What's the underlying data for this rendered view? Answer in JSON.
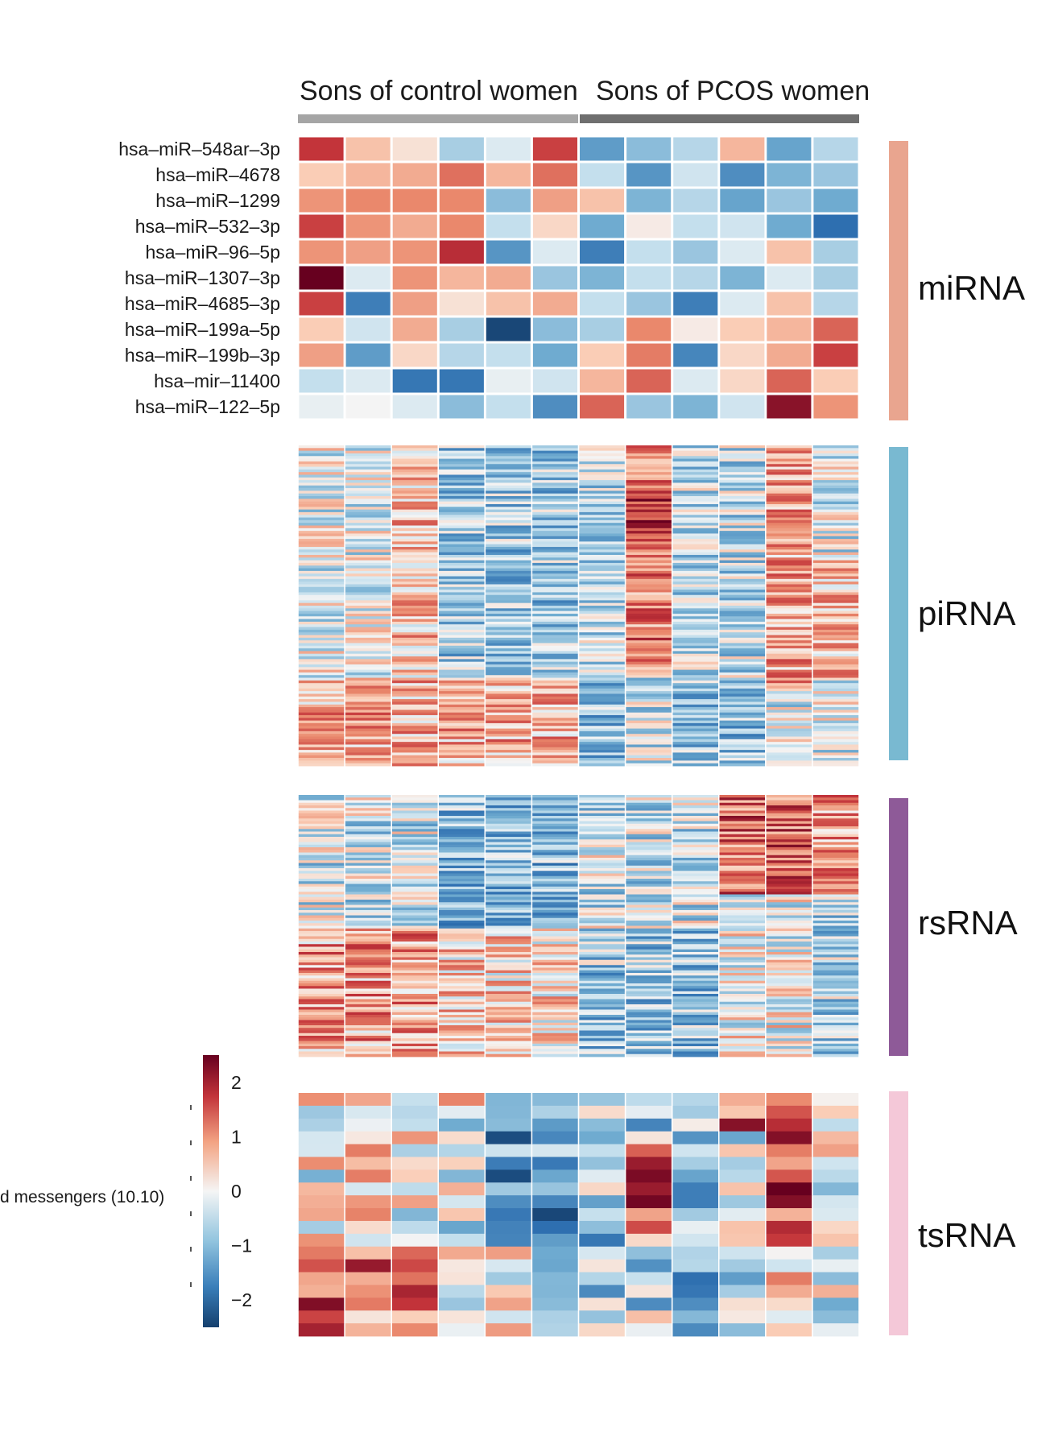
{
  "chart_data": {
    "type": "heatmap",
    "title": "",
    "groups": [
      {
        "name": "Sons of control women",
        "samples": 6,
        "color": "#a5a5a5"
      },
      {
        "name": "Sons of PCOS women",
        "samples": 6,
        "color": "#6f6f6f"
      }
    ],
    "colorbar": {
      "ticks": [
        2,
        1,
        0,
        -1,
        -2
      ],
      "range": [
        -2.5,
        2.5
      ],
      "low_color": "#1a4f8a",
      "mid_color": "#f5f5f5",
      "high_color": "#67001f"
    },
    "side_text": "d messengers (10.10)",
    "sections": [
      {
        "name": "miRNA",
        "color": "#e9a58f",
        "rows": [
          "hsa–miR–548ar–3p",
          "hsa–miR–4678",
          "hsa–miR–1299",
          "hsa–miR–532–3p",
          "hsa–miR–96–5p",
          "hsa–miR–1307–3p",
          "hsa–miR–4685–3p",
          "hsa–miR–199a–5p",
          "hsa–miR–199b–3p",
          "hsa–mir–11400",
          "hsa–miR–122–5p"
        ],
        "values": [
          [
            1.7,
            0.5,
            0.2,
            -0.6,
            -0.2,
            1.6,
            -1.2,
            -0.8,
            -0.5,
            0.6,
            -1.1,
            -0.5
          ],
          [
            0.4,
            0.6,
            0.7,
            1.2,
            0.6,
            1.2,
            -0.4,
            -1.3,
            -0.3,
            -1.4,
            -0.9,
            -0.7
          ],
          [
            0.9,
            1.0,
            1.0,
            1.0,
            -0.8,
            0.8,
            0.5,
            -0.9,
            -0.5,
            -1.1,
            -0.7,
            -1.0
          ],
          [
            1.6,
            0.9,
            0.7,
            1.0,
            -0.4,
            0.3,
            -1.0,
            0.1,
            -0.4,
            -0.3,
            -1.0,
            -1.8
          ],
          [
            0.9,
            0.8,
            0.9,
            1.8,
            -1.3,
            -0.2,
            -1.6,
            -0.4,
            -0.7,
            -0.2,
            0.5,
            -0.6
          ],
          [
            2.5,
            -0.2,
            0.9,
            0.6,
            0.7,
            -0.7,
            -0.9,
            -0.4,
            -0.5,
            -0.9,
            -0.2,
            -0.6
          ],
          [
            1.6,
            -1.6,
            0.8,
            0.2,
            0.5,
            0.7,
            -0.4,
            -0.7,
            -1.6,
            -0.2,
            0.5,
            -0.5
          ],
          [
            0.4,
            -0.3,
            0.7,
            -0.6,
            -2.4,
            -0.8,
            -0.6,
            1.0,
            0.1,
            0.4,
            0.6,
            1.3
          ],
          [
            0.8,
            -1.2,
            0.3,
            -0.5,
            -0.4,
            -1.0,
            0.4,
            1.1,
            -1.5,
            0.3,
            0.7,
            1.6
          ],
          [
            -0.4,
            -0.2,
            -1.7,
            -1.7,
            -0.1,
            -0.3,
            0.6,
            1.3,
            -0.2,
            0.3,
            1.3,
            0.4
          ],
          [
            -0.1,
            0.0,
            -0.2,
            -0.8,
            -0.4,
            -1.4,
            1.3,
            -0.7,
            -0.9,
            -0.3,
            2.2,
            0.9
          ]
        ]
      },
      {
        "name": "piRNA",
        "color": "#79b9d1",
        "n_rows": 120
      },
      {
        "name": "rsRNA",
        "color": "#8e5a98",
        "n_rows": 100
      },
      {
        "name": "tsRNA",
        "color": "#f4c8d8",
        "n_rows": 19
      }
    ]
  }
}
